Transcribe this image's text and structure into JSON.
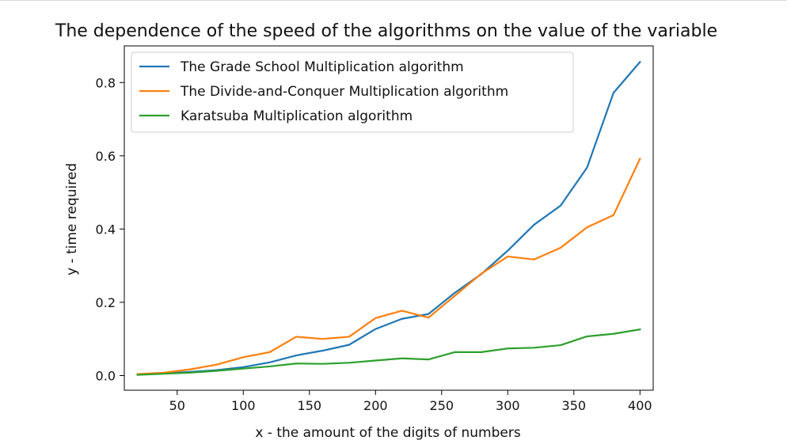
{
  "chart_data": {
    "type": "line",
    "title": "The dependence of the speed of the algorithms on the value of the variable",
    "xlabel": "x - the amount of the digits of numbers",
    "ylabel": "y - time required",
    "xlim": [
      10,
      410
    ],
    "ylim": [
      -0.04,
      0.9
    ],
    "xticks": [
      50,
      100,
      150,
      200,
      250,
      300,
      350,
      400
    ],
    "yticks": [
      0.0,
      0.2,
      0.4,
      0.6,
      0.8
    ],
    "xtick_labels": [
      "50",
      "100",
      "150",
      "200",
      "250",
      "300",
      "350",
      "400"
    ],
    "ytick_labels": [
      "0.0",
      "0.2",
      "0.4",
      "0.6",
      "0.8"
    ],
    "grid": false,
    "legend_position": "top-left",
    "x": [
      20,
      40,
      60,
      80,
      100,
      120,
      140,
      160,
      180,
      200,
      220,
      240,
      260,
      280,
      300,
      320,
      340,
      360,
      380,
      400
    ],
    "series": [
      {
        "name": "The Grade School Multiplication algorithm",
        "color": "#1f77b4",
        "values": [
          0.003,
          0.006,
          0.01,
          0.015,
          0.023,
          0.036,
          0.055,
          0.068,
          0.084,
          0.127,
          0.155,
          0.168,
          0.226,
          0.277,
          0.341,
          0.412,
          0.464,
          0.568,
          0.772,
          0.856
        ]
      },
      {
        "name": "The Divide-and-Conquer Multiplication algorithm",
        "color": "#ff7f0e",
        "values": [
          0.004,
          0.008,
          0.017,
          0.03,
          0.05,
          0.064,
          0.106,
          0.1,
          0.106,
          0.157,
          0.177,
          0.158,
          0.218,
          0.278,
          0.325,
          0.317,
          0.349,
          0.405,
          0.438,
          0.592
        ]
      },
      {
        "name": "Karatsuba Multiplication algorithm",
        "color": "#2ca02c",
        "values": [
          0.002,
          0.005,
          0.008,
          0.013,
          0.019,
          0.025,
          0.033,
          0.032,
          0.035,
          0.041,
          0.047,
          0.044,
          0.064,
          0.064,
          0.074,
          0.076,
          0.083,
          0.107,
          0.114,
          0.126
        ]
      }
    ]
  }
}
